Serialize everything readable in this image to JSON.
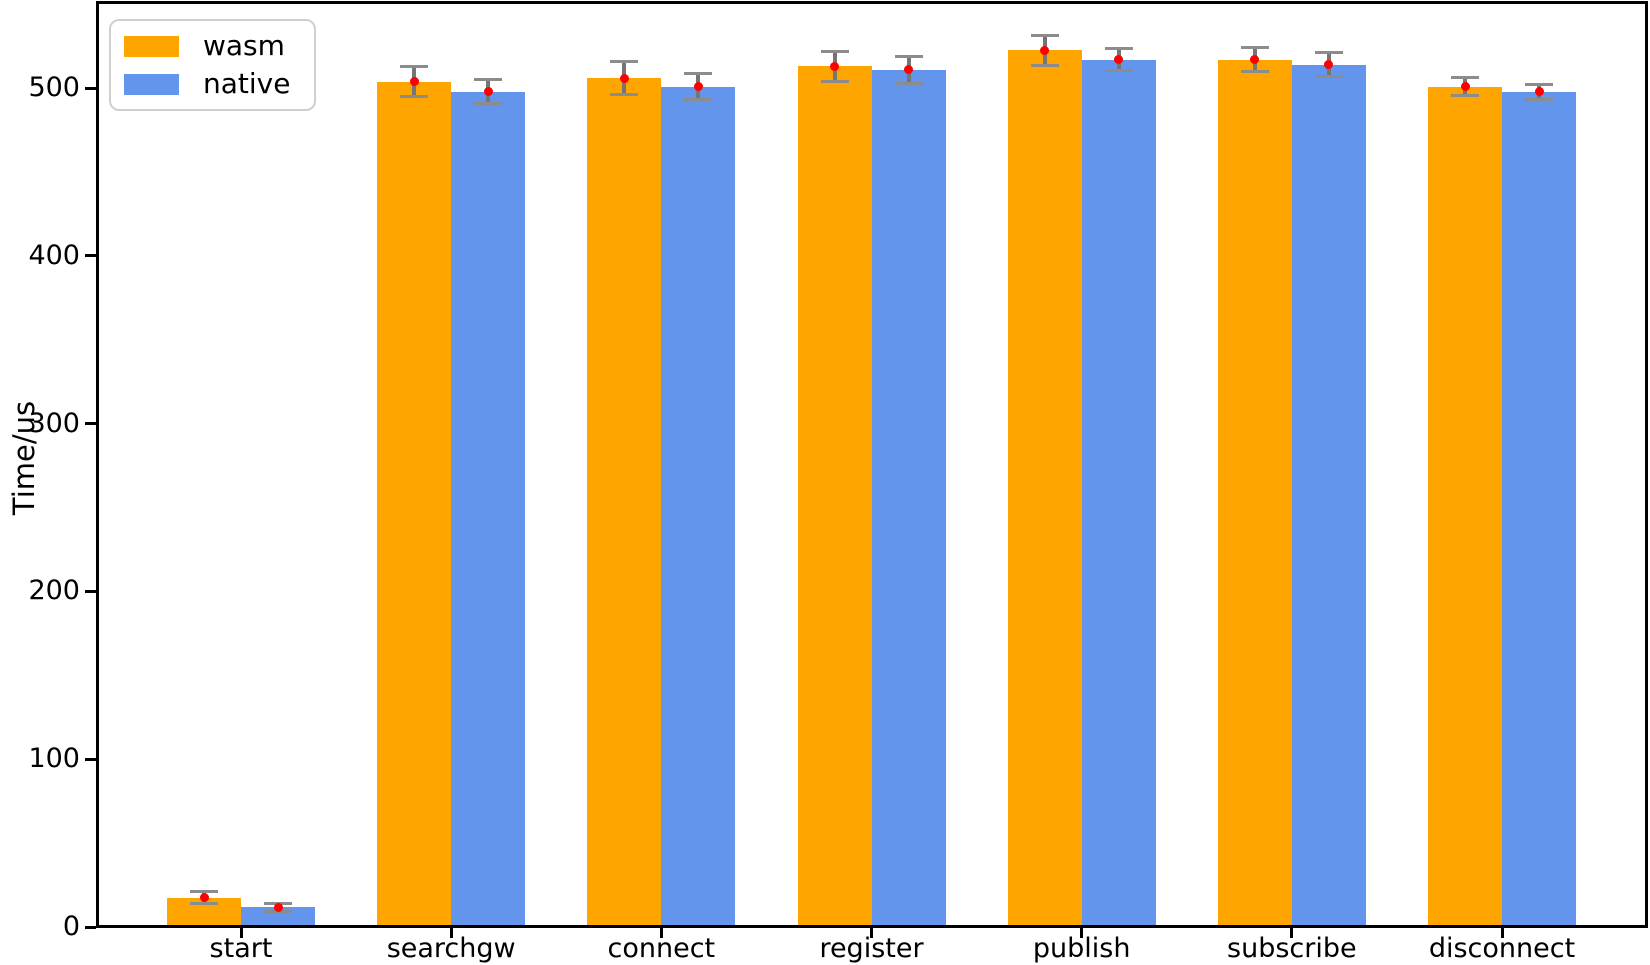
{
  "chart_data": {
    "type": "bar",
    "title": "",
    "xlabel": "",
    "ylabel": "Time/us",
    "categories": [
      "start",
      "searchgw",
      "connect",
      "register",
      "publish",
      "subscribe",
      "disconnect"
    ],
    "series": [
      {
        "name": "wasm",
        "color": "#FFA500",
        "values": [
          17.5,
          504,
          506,
          513,
          522.5,
          517,
          501
        ],
        "errors": [
          3.5,
          9,
          10,
          9,
          9,
          7,
          5.5
        ]
      },
      {
        "name": "native",
        "color": "#6495ED",
        "values": [
          11.7,
          498,
          501,
          511,
          517,
          514,
          498
        ],
        "errors": [
          2.2,
          7,
          7.5,
          8,
          6.5,
          7,
          4.5
        ]
      }
    ],
    "y_ticks": [
      0,
      100,
      200,
      300,
      400,
      500
    ],
    "ylim": [
      0,
      550.8
    ],
    "grid": false,
    "legend": {
      "position": "upper-left",
      "entries": [
        "wasm",
        "native"
      ]
    },
    "error_bars": {
      "line_color": "#757575",
      "cap_color": "#8c8c8c",
      "mean_marker": "red-dot",
      "mean_marker_color": "#ff0000"
    }
  }
}
